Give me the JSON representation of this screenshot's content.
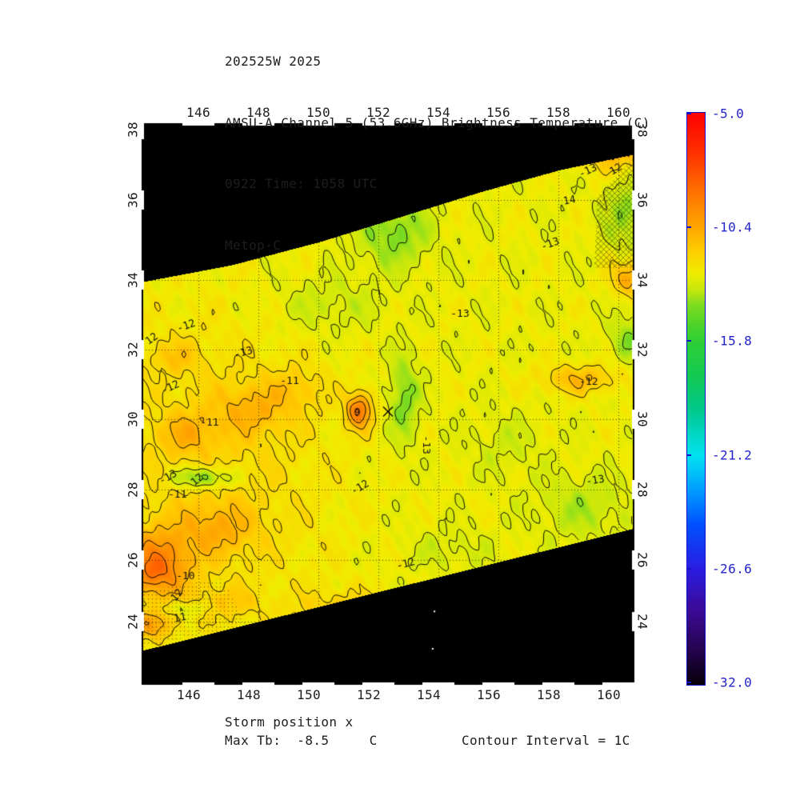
{
  "header": {
    "lines": [
      "202525W 2025",
      "AMSU-A Channel 5 (53.6GHz) Brightness Temperature (C)",
      "0922 Time: 1058 UTC",
      "Metop-C"
    ]
  },
  "footer": {
    "storm_label": "Storm position x",
    "max_tb_line": "Max Tb:  -8.5     C",
    "contour_line": "Contour Interval = 1C"
  },
  "chart_data": {
    "type": "filled-contour-map",
    "storm_id": "202525W",
    "year": "2025",
    "title": "AMSU-A Channel 5 (53.6GHz) Brightness Temperature (C)",
    "pass_info": "0922 Time: 1058 UTC",
    "satellite": "Metop-C",
    "max_tb_c": -8.5,
    "contour_interval_c": 1,
    "x_axis": {
      "name": "longitude_deg_E",
      "ticks": [
        146,
        148,
        150,
        152,
        154,
        156,
        158,
        160
      ],
      "range": [
        144.1,
        160.5
      ]
    },
    "y_axis": {
      "name": "latitude_deg_N",
      "ticks": [
        38,
        36,
        34,
        32,
        30,
        28,
        26,
        24
      ],
      "range": [
        22.0,
        38.2
      ]
    },
    "colorbar": {
      "tick_labels": [
        "-5.0",
        "-10.4",
        "-15.8",
        "-21.2",
        "-26.6",
        "-32.0"
      ],
      "max": -5.0,
      "min": -32.0,
      "label_color": "#2323cd",
      "stops": [
        [
          0,
          "#ff0000"
        ],
        [
          0.07,
          "#ff3000"
        ],
        [
          0.14,
          "#ff7300"
        ],
        [
          0.2,
          "#ffa600"
        ],
        [
          0.24,
          "#ffcc00"
        ],
        [
          0.28,
          "#f0ec00"
        ],
        [
          0.31,
          "#c6e70c"
        ],
        [
          0.335,
          "#7fdc1f"
        ],
        [
          0.37,
          "#4ed32a"
        ],
        [
          0.4,
          "#2ecf35"
        ],
        [
          0.46,
          "#14c952"
        ],
        [
          0.52,
          "#00c98d"
        ],
        [
          0.57,
          "#00d8cc"
        ],
        [
          0.6,
          "#00e2f2"
        ],
        [
          0.66,
          "#009cff"
        ],
        [
          0.72,
          "#0050ff"
        ],
        [
          0.8,
          "#2b1be0"
        ],
        [
          0.87,
          "#3c0a96"
        ],
        [
          0.94,
          "#26034e"
        ],
        [
          1,
          "#060008"
        ]
      ]
    },
    "storm_position": {
      "lon": 152.32,
      "lat": 30.22,
      "marker": "x"
    },
    "swath_top_boundary": [
      [
        144.13,
        33.95
      ],
      [
        147.12,
        34.38
      ],
      [
        150.05,
        34.96
      ],
      [
        152.72,
        35.58
      ],
      [
        155.39,
        36.23
      ],
      [
        158.05,
        36.86
      ],
      [
        160.51,
        37.3
      ]
    ],
    "swath_bottom_boundary": [
      [
        144.13,
        23.1
      ],
      [
        160.51,
        26.9
      ]
    ],
    "field": {
      "base_temp_c": -12.7,
      "features": [
        {
          "lon": 146.5,
          "lat": 28.5,
          "sx": 4.0,
          "sy": 4.5,
          "amp": 0.8
        },
        {
          "lon": 144.6,
          "lat": 25.8,
          "sx": 1.1,
          "sy": 1.0,
          "amp": 3.2
        },
        {
          "lon": 144.5,
          "lat": 25.6,
          "sx": 0.5,
          "sy": 0.45,
          "amp": 0.7
        },
        {
          "lon": 146.6,
          "lat": 26.9,
          "sx": 1.3,
          "sy": 0.75,
          "amp": 1.5
        },
        {
          "lon": 147.8,
          "lat": 30.3,
          "sx": 1.3,
          "sy": 0.75,
          "amp": 1.4
        },
        {
          "lon": 145.6,
          "lat": 29.6,
          "sx": 1.0,
          "sy": 0.6,
          "amp": 1.3
        },
        {
          "lon": 145.2,
          "lat": 31.8,
          "sx": 0.9,
          "sy": 0.5,
          "amp": 1.0
        },
        {
          "lon": 149.3,
          "lat": 30.9,
          "sx": 0.9,
          "sy": 0.6,
          "amp": 0.9
        },
        {
          "lon": 151.35,
          "lat": 30.25,
          "sx": 0.42,
          "sy": 0.5,
          "amp": 3.6
        },
        {
          "lon": 150.8,
          "lat": 24.3,
          "sx": 1.5,
          "sy": 0.7,
          "amp": 1.2
        },
        {
          "lon": 144.3,
          "lat": 23.9,
          "sx": 0.9,
          "sy": 0.45,
          "amp": 1.9
        },
        {
          "lon": 146.9,
          "lat": 24.6,
          "sx": 1.1,
          "sy": 0.5,
          "amp": 1.0
        },
        {
          "lon": 158.7,
          "lat": 31.15,
          "sx": 1.3,
          "sy": 0.4,
          "amp": 1.7
        },
        {
          "lon": 160.4,
          "lat": 34.05,
          "sx": 0.6,
          "sy": 0.45,
          "amp": 2.3
        },
        {
          "lon": 160.0,
          "lat": 37.4,
          "sx": 1.3,
          "sy": 0.55,
          "amp": 1.9
        },
        {
          "lon": 146.15,
          "lat": 28.35,
          "sx": 1.0,
          "sy": 0.3,
          "amp": -2.2
        },
        {
          "lon": 152.5,
          "lat": 35.2,
          "sx": 1.2,
          "sy": 0.85,
          "amp": -1.5
        },
        {
          "lon": 152.85,
          "lat": 30.6,
          "sx": 0.5,
          "sy": 1.2,
          "amp": -1.6
        },
        {
          "lon": 150.3,
          "lat": 33.3,
          "sx": 1.8,
          "sy": 0.8,
          "amp": -0.7
        },
        {
          "lon": 158.8,
          "lat": 27.5,
          "sx": 1.5,
          "sy": 0.9,
          "amp": -0.9
        },
        {
          "lon": 160.3,
          "lat": 32.3,
          "sx": 0.55,
          "sy": 0.6,
          "amp": -1.4
        },
        {
          "lon": 160.3,
          "lat": 35.7,
          "sx": 0.7,
          "sy": 0.9,
          "amp": -1.2
        },
        {
          "lon": 154.3,
          "lat": 26.3,
          "sx": 1.4,
          "sy": 0.6,
          "amp": -0.5
        },
        {
          "lon": 156.2,
          "lat": 29.3,
          "sx": 1.2,
          "sy": 0.9,
          "amp": -0.5
        },
        {
          "lon": 145.6,
          "lat": 24.45,
          "sx": 0.8,
          "sy": 0.25,
          "amp": -1.1
        }
      ],
      "noise_terms": [
        [
          0.3,
          3.1,
          2.7
        ],
        [
          0.25,
          6.3,
          5.1
        ],
        [
          0.15,
          11.0,
          7.0
        ]
      ]
    },
    "contour_levels": [
      -14,
      -13,
      -12,
      -11,
      -10,
      -9
    ],
    "contour_labels": [
      {
        "text": "-12",
        "lon": 145.6,
        "lat": 32.67,
        "rot": -20
      },
      {
        "text": "12",
        "lon": 144.45,
        "lat": 32.3,
        "rot": -35
      },
      {
        "text": "-13",
        "lon": 147.5,
        "lat": 31.9,
        "rot": -15
      },
      {
        "text": "-12",
        "lon": 145.07,
        "lat": 30.9,
        "rot": -25
      },
      {
        "text": "-11",
        "lon": 149.04,
        "lat": 31.08,
        "rot": 0
      },
      {
        "text": "-11",
        "lon": 146.37,
        "lat": 29.89,
        "rot": 0
      },
      {
        "text": "9",
        "lon": 151.3,
        "lat": 30.2,
        "rot": 0
      },
      {
        "text": "-13",
        "lon": 153.57,
        "lat": 29.27,
        "rot": 90
      },
      {
        "text": "-13",
        "lon": 144.99,
        "lat": 28.34,
        "rot": -30
      },
      {
        "text": "12",
        "lon": 145.97,
        "lat": 28.27,
        "rot": -40
      },
      {
        "text": "-11",
        "lon": 145.3,
        "lat": 27.86,
        "rot": 0
      },
      {
        "text": "-12",
        "lon": 151.39,
        "lat": 28.05,
        "rot": -30
      },
      {
        "text": "-10",
        "lon": 145.57,
        "lat": 25.47,
        "rot": 0
      },
      {
        "text": "12",
        "lon": 145.3,
        "lat": 24.85,
        "rot": -50
      },
      {
        "text": "11",
        "lon": 145.39,
        "lat": 24.11,
        "rot": -10
      },
      {
        "text": "-12",
        "lon": 152.91,
        "lat": 25.86,
        "rot": -15
      },
      {
        "text": "-12",
        "lon": 159.01,
        "lat": 31.06,
        "rot": 0
      },
      {
        "text": "-13",
        "lon": 159.23,
        "lat": 28.25,
        "rot": -10
      },
      {
        "text": "14",
        "lon": 158.37,
        "lat": 35.98,
        "rot": -10
      },
      {
        "text": "-13",
        "lon": 158.99,
        "lat": 36.82,
        "rot": -25
      },
      {
        "text": "12",
        "lon": 159.92,
        "lat": 36.86,
        "rot": -30
      },
      {
        "text": "-13",
        "lon": 157.73,
        "lat": 34.89,
        "rot": -20
      },
      {
        "text": "-13",
        "lon": 154.72,
        "lat": 33.01,
        "rot": 0
      }
    ],
    "hatch_regions": [
      {
        "type": "cross",
        "poly": [
          [
            159.2,
            34.3
          ],
          [
            160.51,
            34.3
          ],
          [
            160.51,
            37.2
          ],
          [
            159.3,
            36.1
          ]
        ]
      },
      {
        "type": "dots",
        "poly": [
          [
            144.13,
            23.2
          ],
          [
            147.6,
            23.9
          ],
          [
            146.8,
            25.4
          ],
          [
            144.13,
            25.0
          ]
        ]
      }
    ],
    "specks": [
      [
        153.87,
        24.33
      ],
      [
        153.81,
        23.15
      ]
    ],
    "grid": {
      "dotted": true,
      "color": "#141414"
    }
  }
}
